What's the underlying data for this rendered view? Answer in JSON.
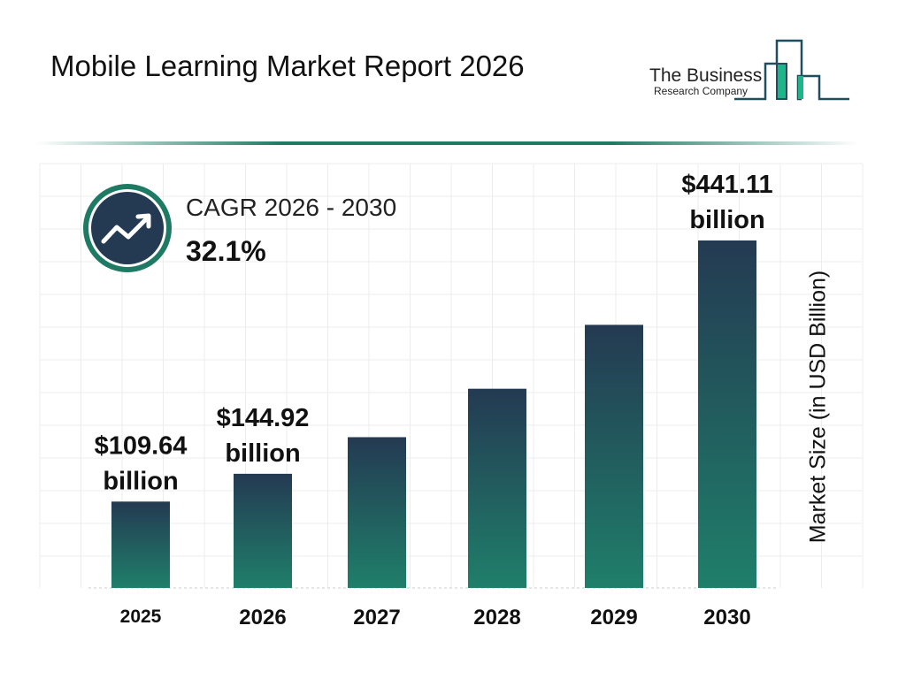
{
  "header": {
    "title": "Mobile Learning Market Report 2026"
  },
  "logo": {
    "line1": "The Business",
    "line2": "Research Company",
    "colors": {
      "outline": "#1f4e5f",
      "fill": "#1fb58a"
    }
  },
  "cagr": {
    "label": "CAGR 2026 - 2030",
    "value": "32.1%",
    "icon": "trend-up-icon"
  },
  "chart_data": {
    "type": "bar",
    "categories": [
      "2025",
      "2026",
      "2027",
      "2028",
      "2029",
      "2030"
    ],
    "values": [
      109.64,
      144.92,
      191.4,
      252.9,
      334.0,
      441.11
    ],
    "data_labels": [
      {
        "index": 0,
        "line1": "$109.64",
        "line2": "billion"
      },
      {
        "index": 1,
        "line1": "$144.92",
        "line2": "billion"
      },
      {
        "index": 5,
        "line1": "$441.11",
        "line2": "billion"
      }
    ],
    "ylabel": "Market Size (in USD Billion)",
    "xlabel": "",
    "grid": true,
    "colors": {
      "bar_top": "#243a52",
      "bar_bottom": "#1f7f6a"
    }
  }
}
